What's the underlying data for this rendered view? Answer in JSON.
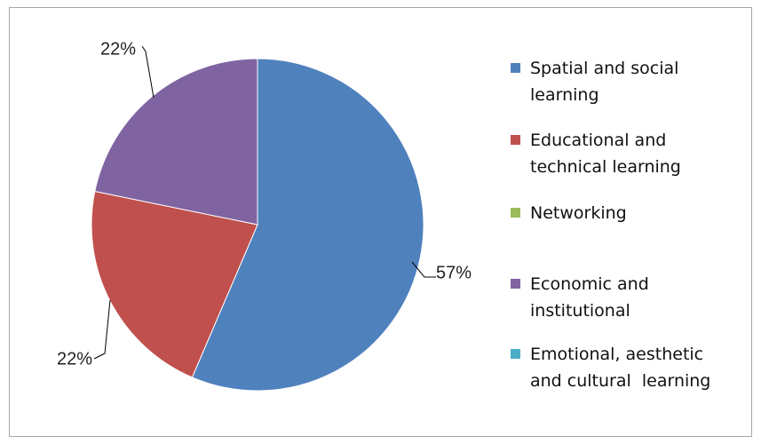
{
  "chart_data": {
    "type": "pie",
    "title": "",
    "categories": [
      "Spatial and social learning",
      "Educational and technical learning",
      "Networking",
      "Economic and institutional",
      "Emotional, aesthetic and cultural  learning"
    ],
    "values": [
      57,
      22,
      0,
      22,
      0
    ],
    "value_labels": [
      "57%",
      "22%",
      "",
      "22%",
      ""
    ],
    "colors": [
      "#4f81bd",
      "#c0504d",
      "#9bbb59",
      "#8064a2",
      "#4bacc6"
    ],
    "legend_position": "right",
    "grid": false
  },
  "legend": {
    "items": [
      {
        "label": "Spatial and social\nlearning",
        "color": "#4f81bd"
      },
      {
        "label": "Educational and\ntechnical learning",
        "color": "#c0504d"
      },
      {
        "label": "Networking",
        "color": "#9bbb59"
      },
      {
        "label": "Economic and\ninstitutional",
        "color": "#8064a2"
      },
      {
        "label": "Emotional, aesthetic\nand cultural  learning",
        "color": "#4bacc6"
      }
    ]
  }
}
